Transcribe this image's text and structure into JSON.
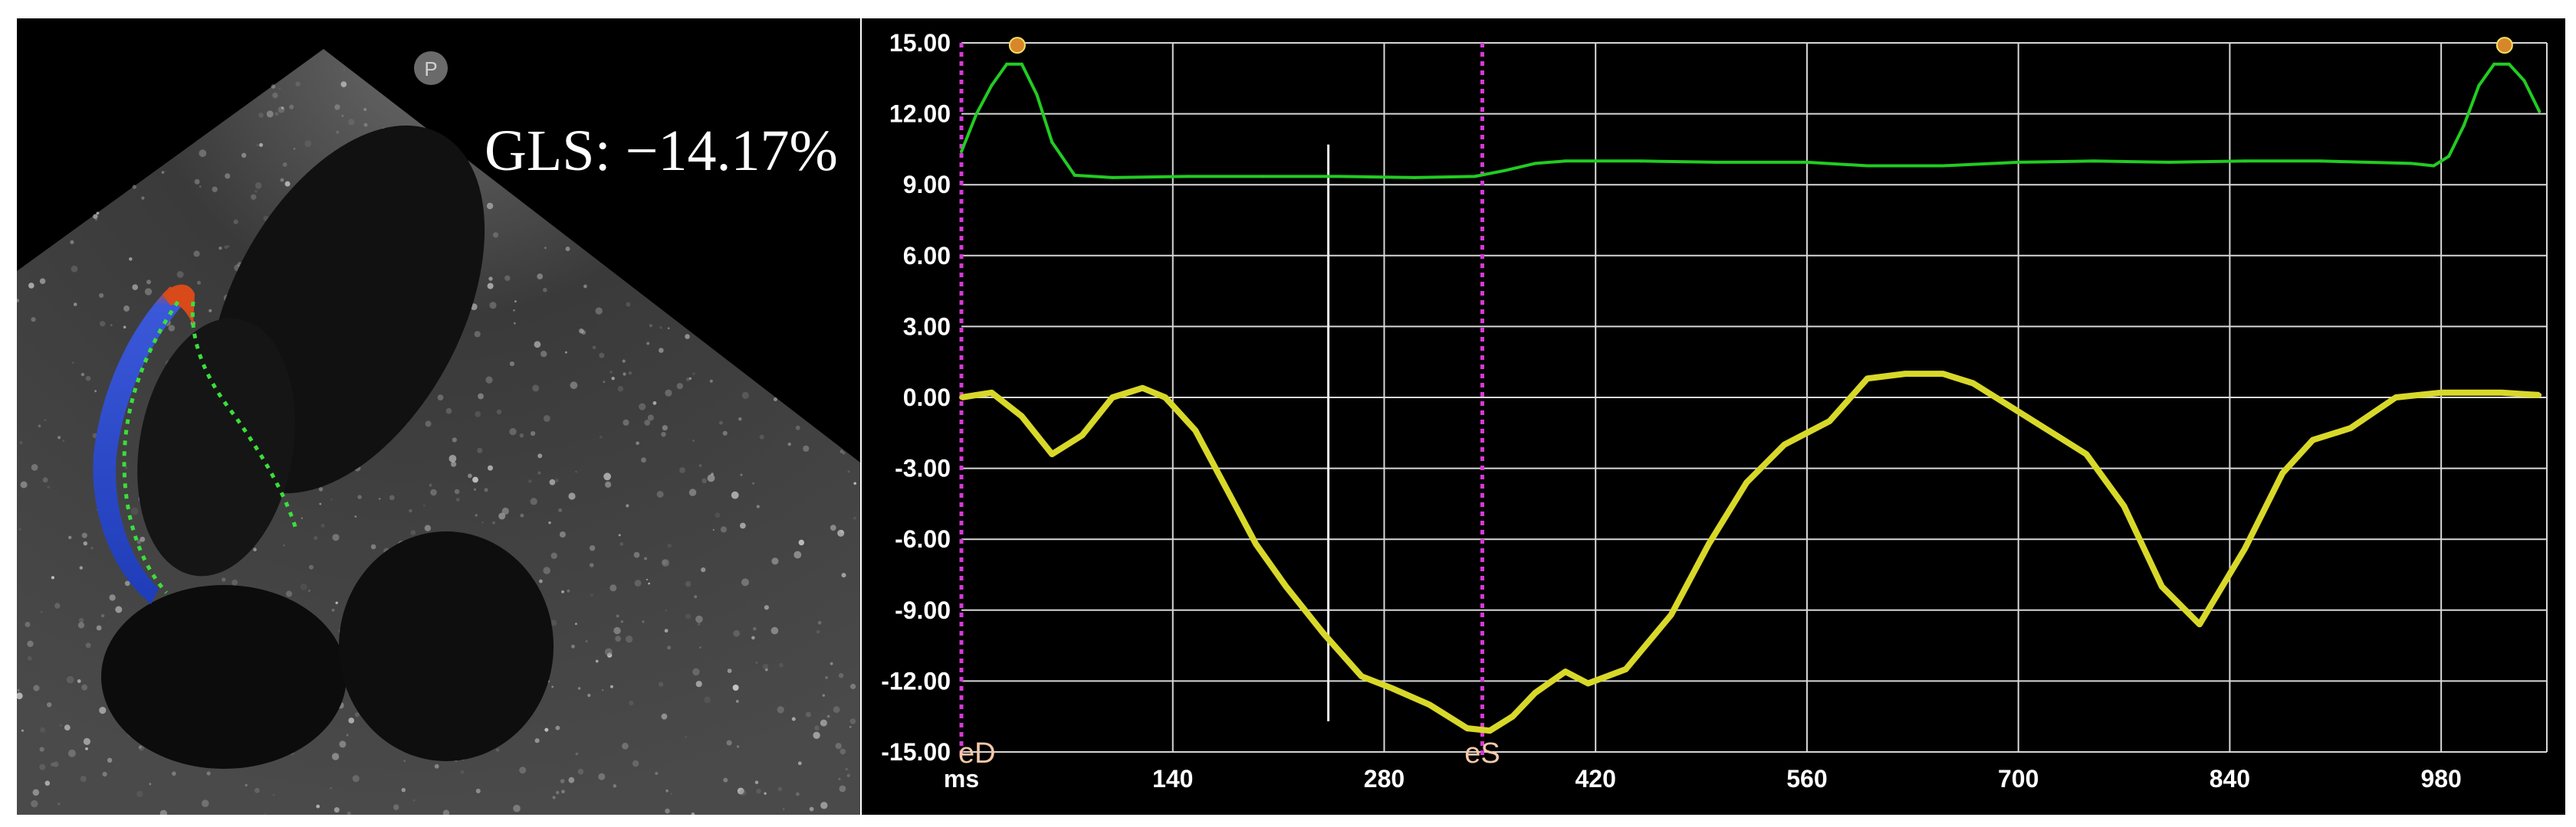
{
  "echo": {
    "gls_label": "GLS: −14.17%",
    "badge_label": "P"
  },
  "colors": {
    "background": "#000000",
    "grid": "#d8d8d8",
    "green_trace": "#22cc22",
    "yellow_trace": "#d8d82a",
    "marker_line": "#d838d8",
    "marker_label": "#f4c8a8"
  },
  "chart_data": {
    "type": "line",
    "xlabel": "ms",
    "ylabel": "",
    "title": "",
    "xlim": [
      0,
      1050
    ],
    "ylim": [
      -15,
      15
    ],
    "x_tick_labels": [
      "ms",
      "140",
      "280",
      "420",
      "560",
      "700",
      "840",
      "980"
    ],
    "x_tick_values": [
      0,
      140,
      280,
      420,
      560,
      700,
      840,
      980
    ],
    "y_tick_values": [
      15,
      12,
      9,
      6,
      3,
      0,
      -3,
      -6,
      -9,
      -12,
      -15
    ],
    "y_tick_labels": [
      "15.00",
      "12.00",
      "9.00",
      "6.00",
      "3.00",
      "0.00",
      "-3.00",
      "-6.00",
      "-9.00",
      "-12.00",
      "-15.00"
    ],
    "grid": true,
    "markers": [
      {
        "label": "eD",
        "x": 0
      },
      {
        "label": "eS",
        "x": 345
      }
    ],
    "cursor_x": 243,
    "series": [
      {
        "color": "#22cc22",
        "x": [
          0,
          10,
          20,
          30,
          40,
          50,
          60,
          75,
          100,
          150,
          200,
          250,
          300,
          340,
          360,
          380,
          400,
          450,
          500,
          560,
          600,
          650,
          700,
          750,
          800,
          850,
          900,
          960,
          975,
          985,
          995,
          1005,
          1015,
          1025,
          1035,
          1045
        ],
        "y": [
          10.4,
          12.0,
          13.2,
          14.1,
          14.1,
          12.8,
          10.8,
          9.4,
          9.3,
          9.35,
          9.35,
          9.35,
          9.3,
          9.35,
          9.6,
          9.9,
          10.0,
          10.0,
          9.95,
          9.95,
          9.8,
          9.8,
          9.95,
          10.0,
          9.95,
          10.0,
          10.0,
          9.9,
          9.8,
          10.2,
          11.5,
          13.2,
          14.1,
          14.1,
          13.4,
          12.1
        ]
      },
      {
        "color": "#d8d82a",
        "x": [
          0,
          20,
          40,
          60,
          80,
          100,
          120,
          135,
          155,
          175,
          195,
          215,
          240,
          265,
          285,
          310,
          335,
          350,
          365,
          380,
          400,
          415,
          440,
          470,
          495,
          520,
          545,
          575,
          600,
          625,
          650,
          670,
          700,
          725,
          745,
          770,
          795,
          820,
          850,
          875,
          895,
          920,
          950,
          980,
          1000,
          1020,
          1045
        ],
        "y": [
          0.0,
          0.2,
          -0.8,
          -2.4,
          -1.6,
          0.0,
          0.4,
          0.0,
          -1.4,
          -3.8,
          -6.2,
          -8.0,
          -10.0,
          -11.8,
          -12.3,
          -13.0,
          -14.0,
          -14.1,
          -13.5,
          -12.5,
          -11.6,
          -12.1,
          -11.5,
          -9.2,
          -6.2,
          -3.6,
          -2.0,
          -1.0,
          0.8,
          1.0,
          1.0,
          0.6,
          -0.6,
          -1.6,
          -2.4,
          -4.6,
          -8.0,
          -9.6,
          -6.4,
          -3.2,
          -1.8,
          -1.3,
          0.0,
          0.2,
          0.2,
          0.2,
          0.1
        ]
      }
    ]
  }
}
